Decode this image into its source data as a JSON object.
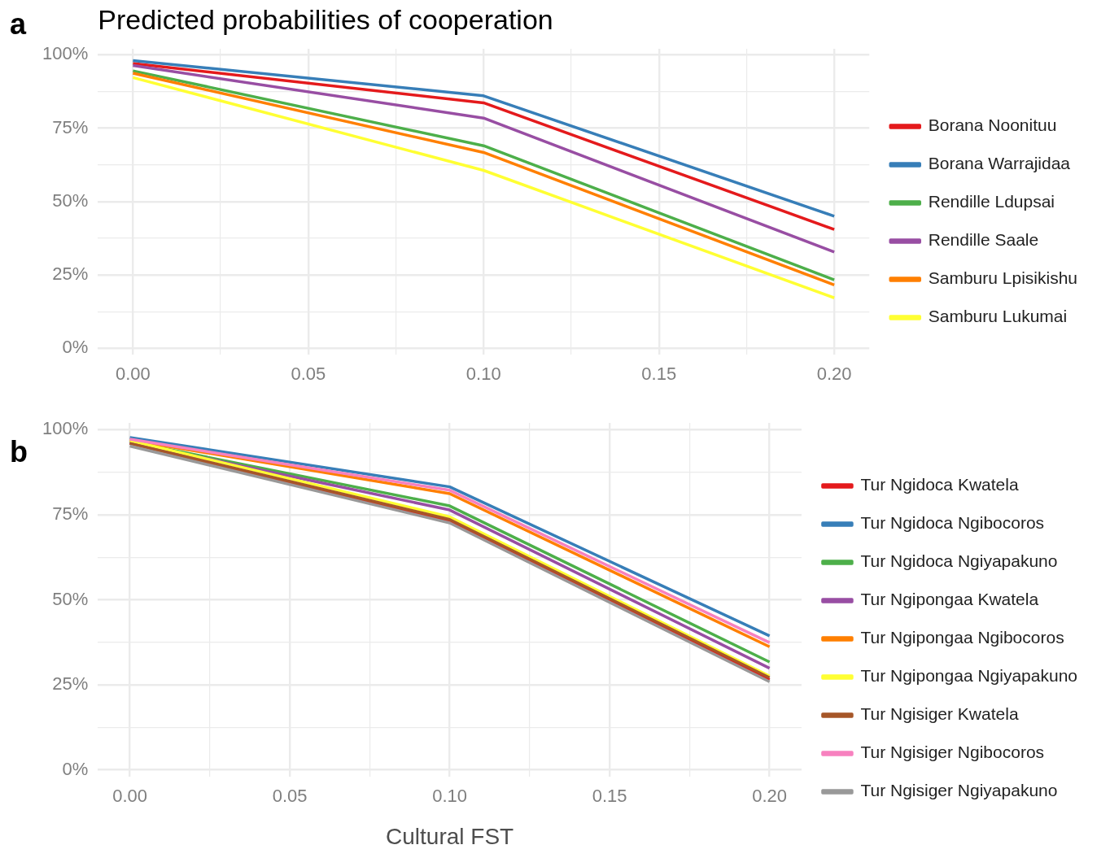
{
  "chart_data": [
    {
      "type": "line",
      "title": "Predicted probabilities of cooperation",
      "annotations": [
        "a"
      ],
      "x": [
        0,
        0.1,
        0.2
      ],
      "xlim": [
        -0.01,
        0.21
      ],
      "xticks": [
        {
          "value": 0,
          "label": "0.00"
        },
        {
          "value": 0.025,
          "label": null
        },
        {
          "value": 0.05,
          "label": "0.05"
        },
        {
          "value": 0.075,
          "label": null
        },
        {
          "value": 0.1,
          "label": "0.10"
        },
        {
          "value": 0.125,
          "label": null
        },
        {
          "value": 0.15,
          "label": "0.15"
        },
        {
          "value": 0.175,
          "label": null
        },
        {
          "value": 0.2,
          "label": "0.20"
        }
      ],
      "ylim": [
        -2,
        102
      ],
      "yticks": [
        {
          "value": 0,
          "label": "0%"
        },
        {
          "value": 12.5,
          "label": null
        },
        {
          "value": 25,
          "label": "25%"
        },
        {
          "value": 37.5,
          "label": null
        },
        {
          "value": 50,
          "label": "50%"
        },
        {
          "value": 62.5,
          "label": null
        },
        {
          "value": 75,
          "label": "75%"
        },
        {
          "value": 87.5,
          "label": null
        },
        {
          "value": 100,
          "label": "100%"
        }
      ],
      "grid": true,
      "legend": "right",
      "marker": "none",
      "line_style": "solid",
      "series": [
        {
          "name": "Borana Noonituu",
          "color": "#e41a1c",
          "values": [
            97,
            83.6,
            40.5
          ]
        },
        {
          "name": "Borana Warrajidaa",
          "color": "#377eb8",
          "values": [
            98,
            86,
            45
          ]
        },
        {
          "name": "Rendille Ldupsai",
          "color": "#4daf4a",
          "values": [
            94.5,
            69,
            23.3
          ]
        },
        {
          "name": "Rendille Saale",
          "color": "#984ea3",
          "values": [
            96.3,
            78.4,
            32.8
          ]
        },
        {
          "name": "Samburu Lpisikishu",
          "color": "#ff7f00",
          "values": [
            93.7,
            66.7,
            21.6
          ]
        },
        {
          "name": "Samburu Lukumai",
          "color": "#ffff33",
          "values": [
            92.2,
            60.6,
            17.2
          ]
        }
      ]
    },
    {
      "type": "line",
      "xlabel": "Cultural FST",
      "annotations": [
        "b"
      ],
      "x": [
        0,
        0.1,
        0.2
      ],
      "xlim": [
        -0.01,
        0.21
      ],
      "xticks": [
        {
          "value": 0,
          "label": "0.00"
        },
        {
          "value": 0.025,
          "label": null
        },
        {
          "value": 0.05,
          "label": "0.05"
        },
        {
          "value": 0.075,
          "label": null
        },
        {
          "value": 0.1,
          "label": "0.10"
        },
        {
          "value": 0.125,
          "label": null
        },
        {
          "value": 0.15,
          "label": "0.15"
        },
        {
          "value": 0.175,
          "label": null
        },
        {
          "value": 0.2,
          "label": "0.20"
        }
      ],
      "ylim": [
        -2,
        102
      ],
      "yticks": [
        {
          "value": 0,
          "label": "0%"
        },
        {
          "value": 12.5,
          "label": null
        },
        {
          "value": 25,
          "label": "25%"
        },
        {
          "value": 37.5,
          "label": null
        },
        {
          "value": 50,
          "label": "50%"
        },
        {
          "value": 62.5,
          "label": null
        },
        {
          "value": 75,
          "label": "75%"
        },
        {
          "value": 87.5,
          "label": null
        },
        {
          "value": 100,
          "label": "100%"
        }
      ],
      "grid": true,
      "legend": "right",
      "marker": "none",
      "line_style": "solid",
      "series": [
        {
          "name": "Tur Ngidoca Kwatela",
          "color": "#e41a1c",
          "values": [
            96,
            73,
            26.5
          ]
        },
        {
          "name": "Tur Ngidoca Ngibocoros",
          "color": "#377eb8",
          "values": [
            97.7,
            83.2,
            39.4
          ]
        },
        {
          "name": "Tur Ngidoca Ngiyapakuno",
          "color": "#4daf4a",
          "values": [
            96.5,
            77.6,
            31.7
          ]
        },
        {
          "name": "Tur Ngipongaa Kwatela",
          "color": "#984ea3",
          "values": [
            96.3,
            76.4,
            29.9
          ]
        },
        {
          "name": "Tur Ngipongaa Ngibocoros",
          "color": "#ff7f00",
          "values": [
            97,
            81.2,
            36.2
          ]
        },
        {
          "name": "Tur Ngipongaa Ngiyapakuno",
          "color": "#ffff33",
          "values": [
            96.8,
            74.4,
            27.6
          ]
        },
        {
          "name": "Tur Ngisiger Kwatela",
          "color": "#a65628",
          "values": [
            96,
            73.6,
            27.1
          ]
        },
        {
          "name": "Tur Ngisiger Ngibocoros",
          "color": "#f781bf",
          "values": [
            97.2,
            82.2,
            37.4
          ]
        },
        {
          "name": "Tur Ngisiger Ngiyapakuno",
          "color": "#999999",
          "values": [
            95.2,
            72.6,
            25.9
          ]
        }
      ]
    }
  ]
}
